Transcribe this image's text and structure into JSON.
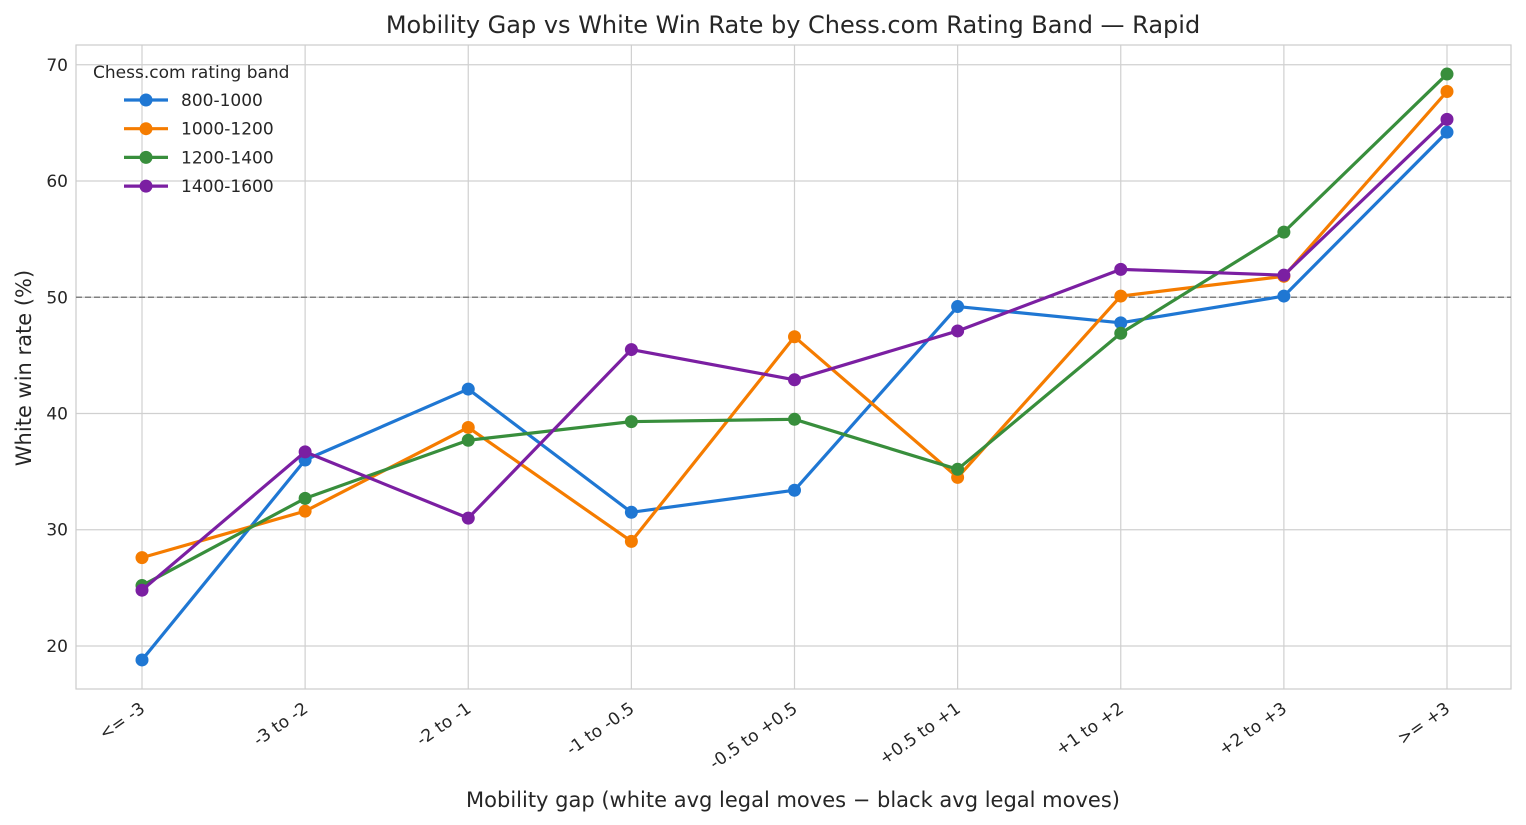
{
  "chart_data": {
    "type": "line",
    "title": "Mobility Gap vs White Win Rate by Chess.com Rating Band — Rapid",
    "xlabel": "Mobility gap (white avg legal moves − black avg legal moves)",
    "ylabel": "White win rate (%)",
    "categories": [
      "<= -3",
      "-3 to -2",
      "-2 to -1",
      "-1 to -0.5",
      "-0.5 to +0.5",
      "+0.5 to +1",
      "+1 to +2",
      "+2 to +3",
      ">= +3"
    ],
    "ylim": [
      16.3,
      71.7
    ],
    "yticks": [
      "20",
      "30",
      "40",
      "50",
      "60",
      "70"
    ],
    "reference_line": 50,
    "grid": true,
    "legend": {
      "title": "Chess.com rating band",
      "position": "top-left"
    },
    "series": [
      {
        "name": "800-1000",
        "color": "#1f77d3",
        "values": [
          18.8,
          36.0,
          42.1,
          31.5,
          33.4,
          49.2,
          47.8,
          50.1,
          64.2
        ]
      },
      {
        "name": "1000-1200",
        "color": "#f57c00",
        "values": [
          27.6,
          31.6,
          38.8,
          29.0,
          46.6,
          34.5,
          50.1,
          51.8,
          67.7
        ]
      },
      {
        "name": "1200-1400",
        "color": "#388e3c",
        "values": [
          25.2,
          32.7,
          37.7,
          39.3,
          39.5,
          35.2,
          46.9,
          55.6,
          69.2
        ]
      },
      {
        "name": "1400-1600",
        "color": "#7b1fa2",
        "values": [
          24.8,
          36.7,
          31.0,
          45.5,
          42.9,
          47.1,
          52.4,
          51.9,
          65.3
        ]
      }
    ]
  }
}
